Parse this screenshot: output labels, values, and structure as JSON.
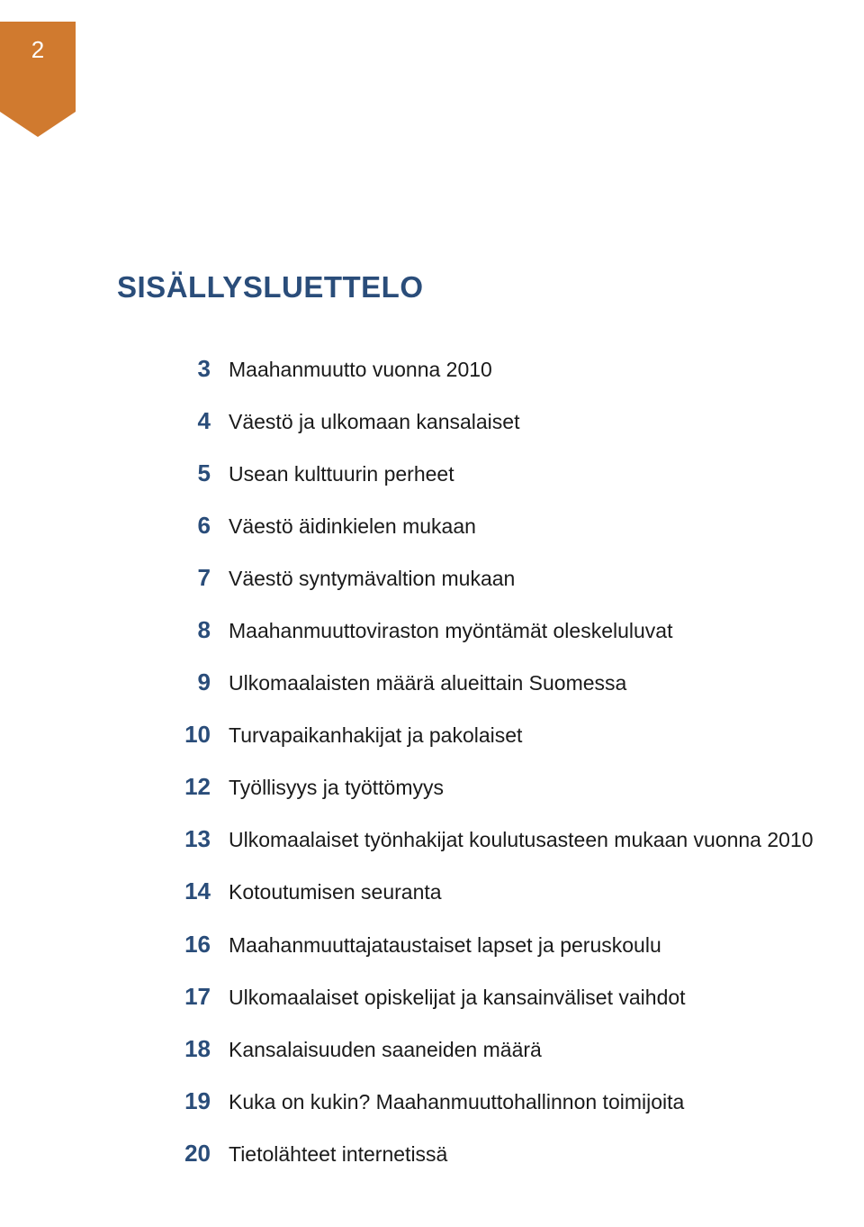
{
  "page_number": "2",
  "colors": {
    "badge_bg": "#d07a2f",
    "badge_text": "#ffffff",
    "heading": "#2a4d7a",
    "entry_number": "#2a4d7a",
    "entry_title": "#1a1a1a",
    "background": "#ffffff"
  },
  "typography": {
    "heading_size_pt": 25,
    "heading_weight": "bold",
    "number_size_pt": 20,
    "number_weight": "bold",
    "title_size_pt": 17,
    "title_weight": "normal",
    "page_num_size_pt": 20
  },
  "heading": "SISÄLLYSLUETTELO",
  "entries": [
    {
      "num": "3",
      "title": "Maahanmuutto vuonna 2010"
    },
    {
      "num": "4",
      "title": "Väestö ja ulkomaan kansalaiset"
    },
    {
      "num": "5",
      "title": "Usean kulttuurin perheet"
    },
    {
      "num": "6",
      "title": "Väestö äidinkielen mukaan"
    },
    {
      "num": "7",
      "title": "Väestö syntymävaltion mukaan"
    },
    {
      "num": "8",
      "title": "Maahanmuuttoviraston myöntämät oleskeluluvat"
    },
    {
      "num": "9",
      "title": "Ulkomaalaisten määrä alueittain Suomessa"
    },
    {
      "num": "10",
      "title": "Turvapaikanhakijat ja pakolaiset"
    },
    {
      "num": "12",
      "title": "Työllisyys ja työttömyys"
    },
    {
      "num": "13",
      "title": "Ulkomaalaiset työnhakijat koulutusasteen mukaan vuonna 2010"
    },
    {
      "num": "14",
      "title": "Kotoutumisen seuranta"
    },
    {
      "num": "16",
      "title": "Maahanmuuttajataustaiset lapset ja peruskoulu"
    },
    {
      "num": "17",
      "title": "Ulkomaalaiset opiskelijat ja kansainväliset vaihdot"
    },
    {
      "num": "18",
      "title": "Kansalaisuuden saaneiden määrä"
    },
    {
      "num": "19",
      "title": "Kuka on kukin? Maahanmuuttohallinnon toimijoita"
    },
    {
      "num": "20",
      "title": "Tietolähteet internetissä"
    }
  ]
}
